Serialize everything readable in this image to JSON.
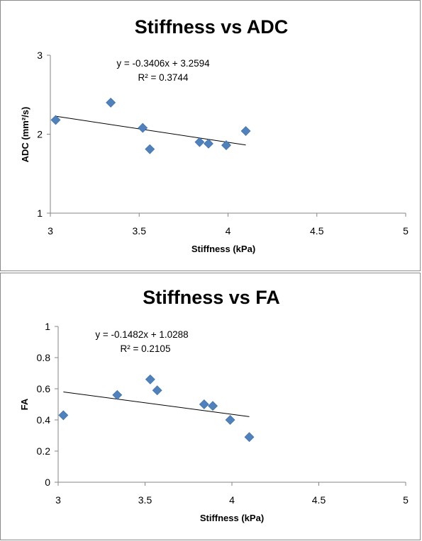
{
  "chart_data": [
    {
      "type": "scatter",
      "title": "Stiffness vs ADC",
      "xlabel": "Stiffness (kPa)",
      "ylabel": "ADC (mm²/s)",
      "xlim": [
        3,
        5
      ],
      "ylim": [
        1,
        3
      ],
      "xticks": [
        "3",
        "3.5",
        "4",
        "4.5",
        "5"
      ],
      "yticks": [
        "1",
        "2",
        "3"
      ],
      "grid": false,
      "marker_color": "#4f81bd",
      "series": [
        {
          "x": [
            3.03,
            3.34,
            3.52,
            3.56,
            3.84,
            3.89,
            3.99,
            4.1
          ],
          "y": [
            2.18,
            2.4,
            2.08,
            1.81,
            1.9,
            1.88,
            1.86,
            2.04
          ]
        }
      ],
      "trendline": {
        "equation": "y = -0.3406x + 3.2594",
        "r2_text": "R² = 0.3744",
        "slope": -0.3406,
        "intercept": 3.2594,
        "x_range": [
          3.03,
          4.1
        ]
      }
    },
    {
      "type": "scatter",
      "title": "Stiffness vs FA",
      "xlabel": "Stiffness (kPa)",
      "ylabel": "FA",
      "xlim": [
        3,
        5
      ],
      "ylim": [
        0,
        1
      ],
      "xticks": [
        "3",
        "3.5",
        "4",
        "4.5",
        "5"
      ],
      "yticks": [
        "0",
        "0.2",
        "0.4",
        "0.6",
        "0.8",
        "1"
      ],
      "grid": false,
      "marker_color": "#4f81bd",
      "series": [
        {
          "x": [
            3.03,
            3.34,
            3.53,
            3.57,
            3.84,
            3.89,
            3.99,
            4.1
          ],
          "y": [
            0.43,
            0.56,
            0.66,
            0.59,
            0.5,
            0.49,
            0.4,
            0.29
          ]
        }
      ],
      "trendline": {
        "equation": "y = -0.1482x + 1.0288",
        "r2_text": "R² = 0.2105",
        "slope": -0.1482,
        "intercept": 1.0288,
        "x_range": [
          3.03,
          4.1
        ]
      }
    }
  ]
}
